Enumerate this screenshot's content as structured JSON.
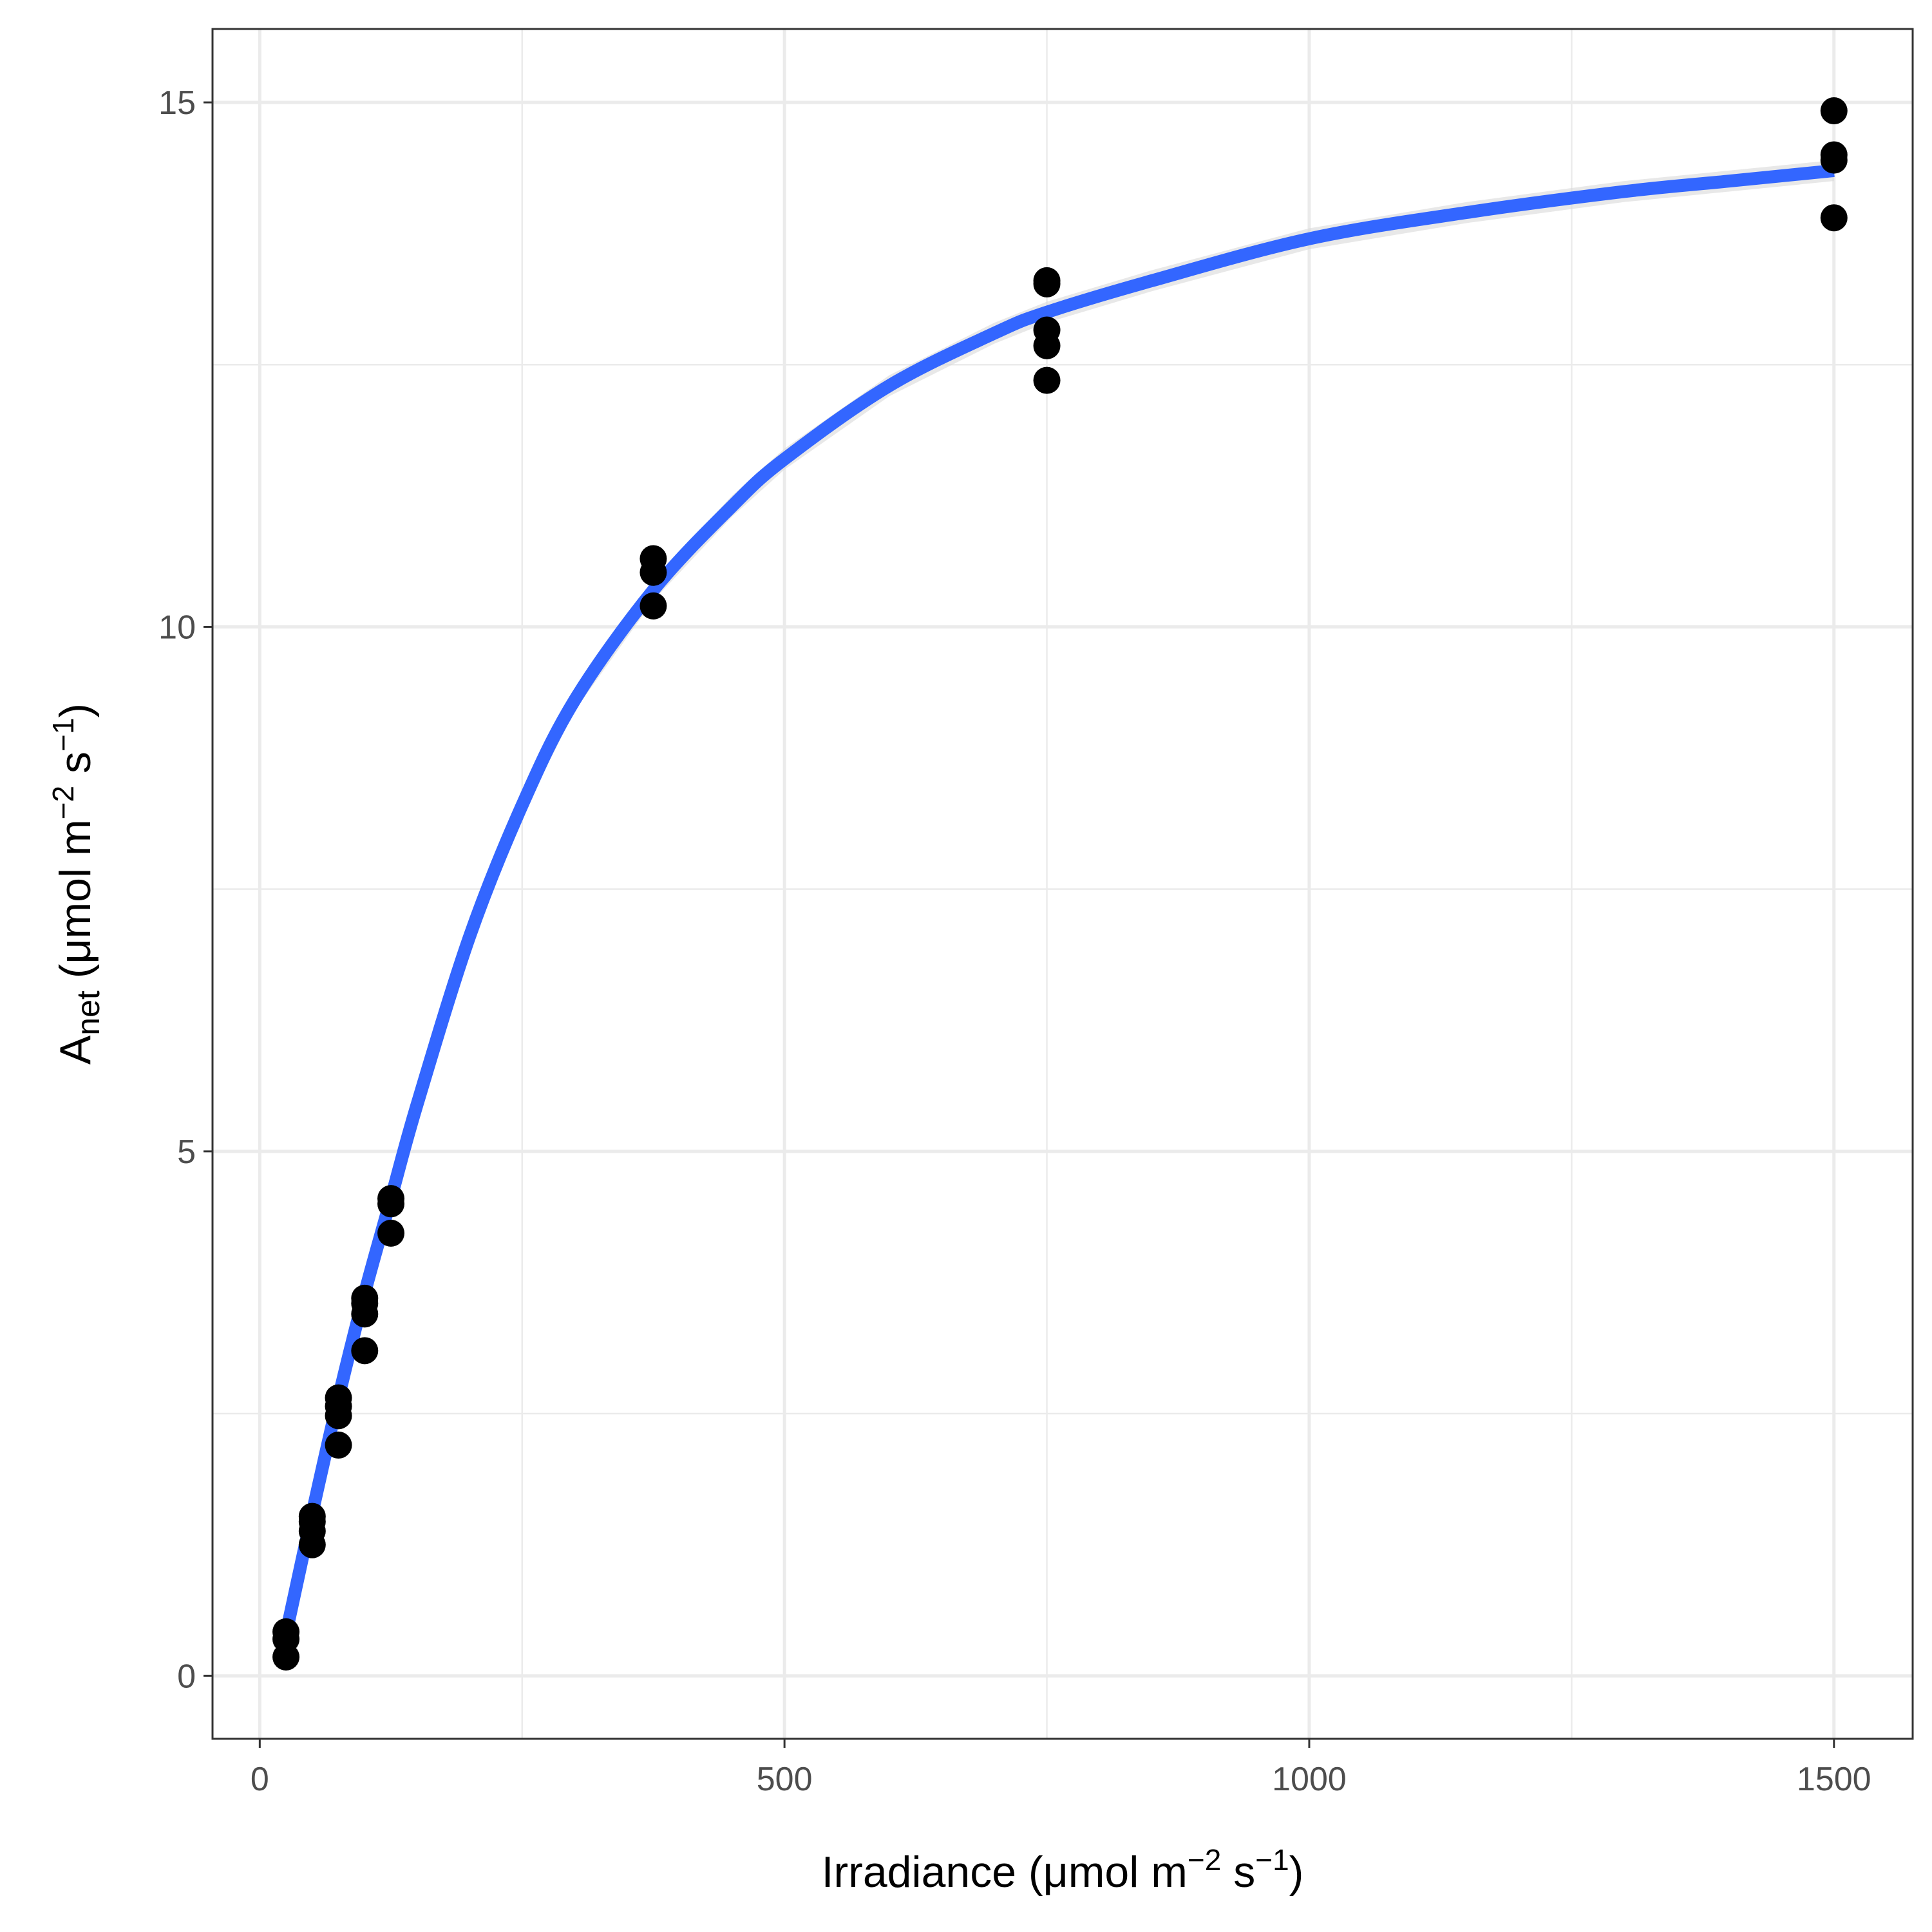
{
  "chart_data": {
    "type": "scatter",
    "title": "",
    "xlabel": {
      "main": "Irradiance (",
      "unit_prefix": "μmol m",
      "exp1": "−2",
      "mid": " s",
      "exp2": "−1",
      "close": ")"
    },
    "ylabel": {
      "main": "A",
      "subscript": "net",
      "rest": " (μmol m",
      "exp1": "−2",
      "mid": " s",
      "exp2": "−1",
      "close": ")"
    },
    "xlim": [
      -45,
      1575
    ],
    "ylim": [
      -0.6,
      15.7
    ],
    "x_ticks": [
      0,
      500,
      1000,
      1500
    ],
    "x_tick_labels": [
      "0",
      "500",
      "1000",
      "1500"
    ],
    "x_minor_ticks": [
      250,
      750,
      1250
    ],
    "y_ticks": [
      0,
      5,
      10,
      15
    ],
    "y_tick_labels": [
      "0",
      "5",
      "10",
      "15"
    ],
    "y_minor_ticks": [
      2.5,
      7.5,
      12.5
    ],
    "grid": true,
    "legend": "none",
    "colors": {
      "points": "#000000",
      "fit_line": "#3366FF",
      "confidence_band": "#d9d9d9",
      "grid": "#ebebeb",
      "panel_border": "#333333"
    },
    "points": [
      {
        "x": 25,
        "y": 0.42
      },
      {
        "x": 25,
        "y": 0.35
      },
      {
        "x": 25,
        "y": 0.18
      },
      {
        "x": 50,
        "y": 1.52
      },
      {
        "x": 50,
        "y": 1.47
      },
      {
        "x": 50,
        "y": 1.38
      },
      {
        "x": 50,
        "y": 1.25
      },
      {
        "x": 75,
        "y": 2.65
      },
      {
        "x": 75,
        "y": 2.57
      },
      {
        "x": 75,
        "y": 2.48
      },
      {
        "x": 75,
        "y": 2.2
      },
      {
        "x": 100,
        "y": 3.6
      },
      {
        "x": 100,
        "y": 3.55
      },
      {
        "x": 100,
        "y": 3.45
      },
      {
        "x": 100,
        "y": 3.1
      },
      {
        "x": 125,
        "y": 4.55
      },
      {
        "x": 125,
        "y": 4.5
      },
      {
        "x": 125,
        "y": 4.22
      },
      {
        "x": 375,
        "y": 10.65
      },
      {
        "x": 375,
        "y": 10.52
      },
      {
        "x": 375,
        "y": 10.2
      },
      {
        "x": 750,
        "y": 13.3
      },
      {
        "x": 750,
        "y": 13.27
      },
      {
        "x": 750,
        "y": 12.83
      },
      {
        "x": 750,
        "y": 12.68
      },
      {
        "x": 750,
        "y": 12.35
      },
      {
        "x": 1500,
        "y": 14.92
      },
      {
        "x": 1500,
        "y": 14.5
      },
      {
        "x": 1500,
        "y": 14.45
      },
      {
        "x": 1500,
        "y": 13.9
      }
    ],
    "fit_curve": {
      "x": [
        25,
        50,
        75,
        100,
        125,
        150,
        200,
        250,
        300,
        375,
        450,
        500,
        600,
        700,
        750,
        850,
        1000,
        1150,
        1300,
        1400,
        1500
      ],
      "y": [
        0.4,
        1.55,
        2.65,
        3.65,
        4.55,
        5.45,
        7.05,
        8.3,
        9.3,
        10.35,
        11.15,
        11.6,
        12.3,
        12.8,
        13.0,
        13.3,
        13.7,
        13.95,
        14.15,
        14.25,
        14.35
      ]
    },
    "fit_band_halfwidth": 0.1
  }
}
